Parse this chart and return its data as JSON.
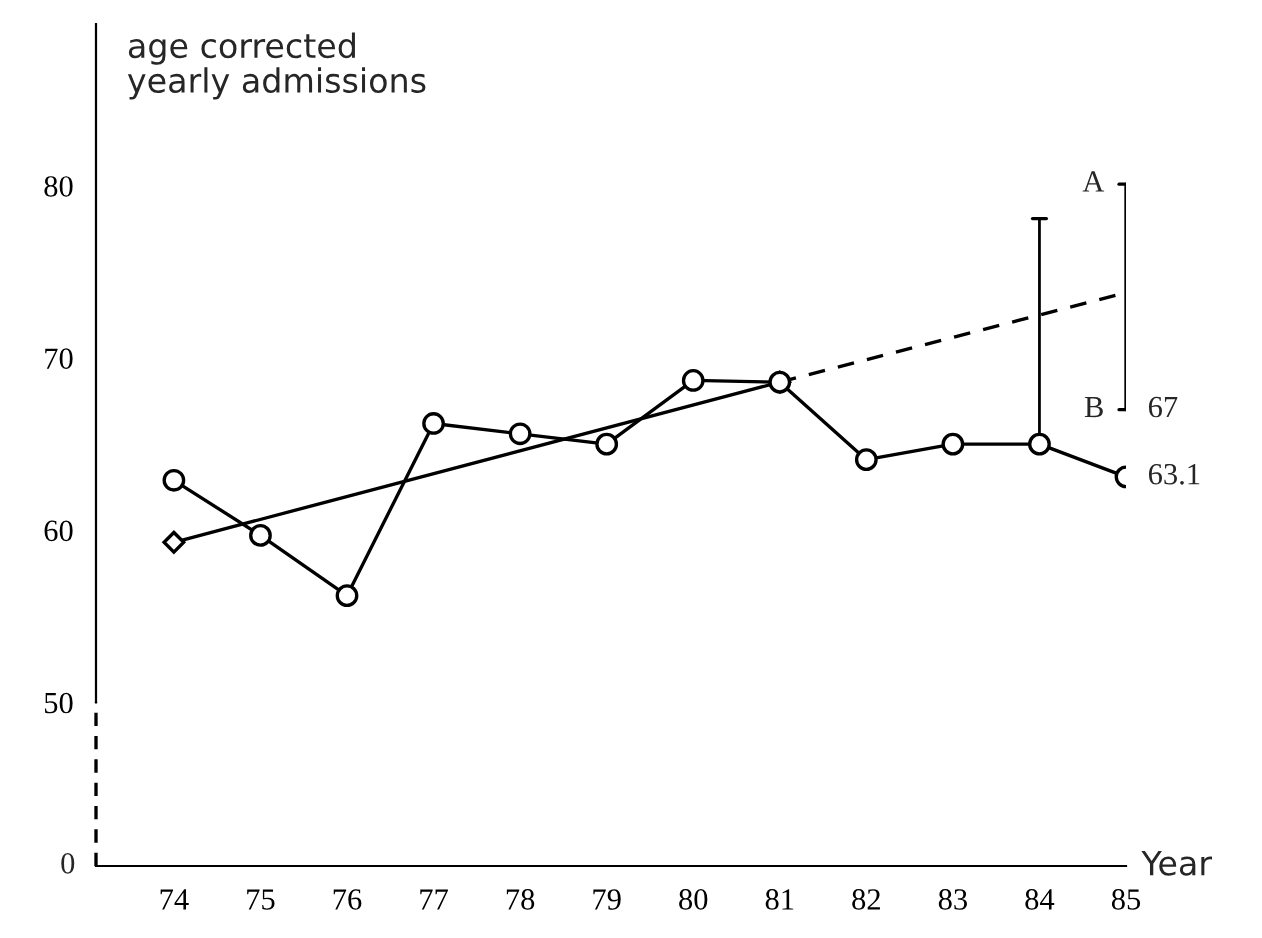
{
  "chart_data": {
    "type": "line",
    "ylabel": "age corrected\nyearly admissions",
    "xlabel": "Year",
    "x": [
      74,
      75,
      76,
      77,
      78,
      79,
      80,
      81,
      82,
      83,
      84,
      85
    ],
    "series": [
      {
        "color": "#000000",
        "marker": "circle",
        "line_style": "solid",
        "values": [
          62.9,
          59.7,
          56.2,
          66.2,
          65.6,
          65.0,
          68.7,
          68.6,
          64.1,
          65.0,
          65.0,
          63.1
        ],
        "value_labels": [
          null,
          null,
          null,
          null,
          null,
          null,
          null,
          null,
          null,
          null,
          null,
          "63.1"
        ],
        "errors": [
          null,
          null,
          null,
          null,
          null,
          null,
          null,
          null,
          null,
          null,
          [
            65.0,
            78.1
          ],
          null
        ]
      },
      {
        "color": "#000000",
        "marker": "diamond",
        "line_style": "solid",
        "x": [
          74,
          81
        ],
        "values": [
          59.3,
          68.6
        ]
      },
      {
        "color": "#000000",
        "marker": "none",
        "line_style": "dashed",
        "x": [
          81,
          85
        ],
        "values": [
          68.6,
          73.8
        ]
      },
      {
        "color": "#000000",
        "marker": "none",
        "line_style": "solid",
        "x": [
          85,
          85
        ],
        "values": [
          67,
          80.1
        ],
        "value_labels": [
          "67",
          null
        ]
      }
    ],
    "xlim": [
      73.1,
      85
    ],
    "xticks": [
      74,
      75,
      76,
      77,
      78,
      79,
      80,
      81,
      82,
      83,
      84,
      85
    ],
    "ylim": [
      40.5,
      89.4
    ],
    "yticks": [
      50,
      60,
      70,
      80
    ],
    "grid": false,
    "legend": false,
    "annotations": [
      "0",
      {
        "text": "A",
        "x": 85,
        "y": 80.1
      },
      {
        "text": "B",
        "x": 85,
        "y": 67
      }
    ]
  }
}
